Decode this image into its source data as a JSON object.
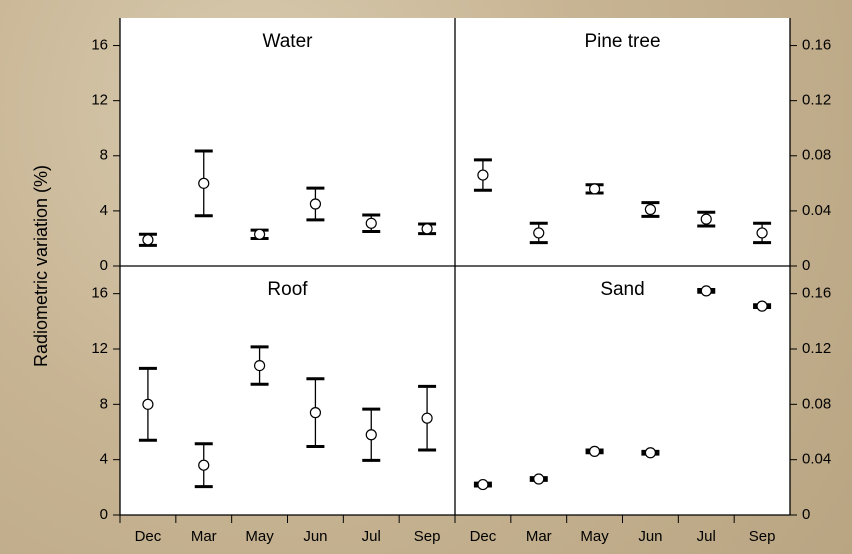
{
  "chart_data": [
    {
      "type": "errorbar",
      "title": "Water",
      "ylabel": "Radiometric variation (%)",
      "categories": [
        "Dec",
        "Mar",
        "May",
        "Jun",
        "Jul",
        "Sep"
      ],
      "values": [
        1.9,
        6.0,
        2.3,
        4.5,
        3.1,
        2.7
      ],
      "errors": [
        0.4,
        2.35,
        0.3,
        1.15,
        0.6,
        0.35
      ],
      "ylim": [
        0,
        18
      ],
      "yticks": [
        0,
        4,
        8,
        12,
        16
      ],
      "axis_side": "left",
      "show_categories": false,
      "color": "#000000"
    },
    {
      "type": "errorbar",
      "title": "Pine tree",
      "categories": [
        "Dec",
        "Mar",
        "May",
        "Jun",
        "Jul",
        "Sep"
      ],
      "values": [
        0.066,
        0.024,
        0.056,
        0.041,
        0.034,
        0.024
      ],
      "errors": [
        0.011,
        0.007,
        0.003,
        0.005,
        0.005,
        0.007
      ],
      "ylim": [
        0,
        0.18
      ],
      "yticks": [
        0,
        0.04,
        0.08,
        0.12,
        0.16
      ],
      "axis_side": "right",
      "show_categories": false,
      "color": "#000000"
    },
    {
      "type": "errorbar",
      "title": "Roof",
      "categories": [
        "Dec",
        "Mar",
        "May",
        "Jun",
        "Jul",
        "Sep"
      ],
      "values": [
        8.0,
        3.6,
        10.8,
        7.4,
        5.8,
        7.0
      ],
      "errors": [
        2.6,
        1.55,
        1.35,
        2.45,
        1.85,
        2.3
      ],
      "ylim": [
        0,
        18
      ],
      "yticks": [
        0,
        4,
        8,
        12,
        16
      ],
      "axis_side": "left",
      "show_categories": true,
      "color": "#000000"
    },
    {
      "type": "errorbar",
      "title": "Sand",
      "categories": [
        "Dec",
        "Mar",
        "May",
        "Jun",
        "Jul",
        "Sep"
      ],
      "values": [
        0.022,
        0.026,
        0.046,
        0.045,
        0.162,
        0.151
      ],
      "errors": [
        0.001,
        0.001,
        0.001,
        0.001,
        0.001,
        0.001
      ],
      "ylim": [
        0,
        0.18
      ],
      "yticks": [
        0,
        0.04,
        0.08,
        0.12,
        0.16
      ],
      "axis_side": "right",
      "show_categories": true,
      "color": "#000000"
    }
  ]
}
